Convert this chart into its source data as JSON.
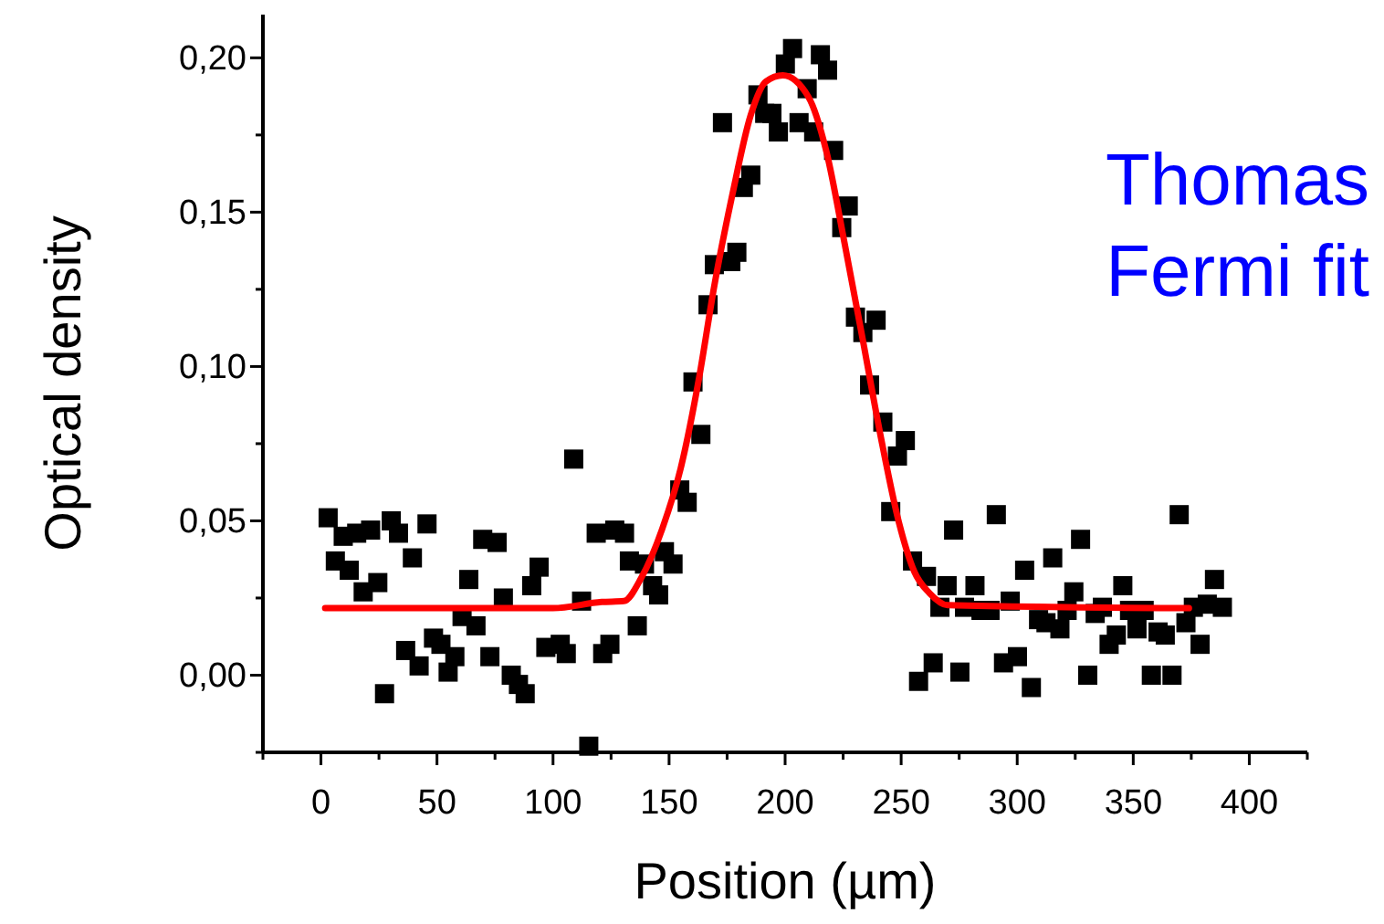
{
  "chart_data": {
    "type": "scatter",
    "xlabel": "Position (µm)",
    "ylabel": "Optical density",
    "annotations": [
      "Thomas Fermi fit"
    ],
    "xlim": [
      -25,
      425
    ],
    "xticks": [
      {
        "value": -25,
        "label": null
      },
      0,
      {
        "value": 25,
        "label": null
      },
      50,
      {
        "value": 75,
        "label": null
      },
      100,
      {
        "value": 125,
        "label": null
      },
      150,
      {
        "value": 175,
        "label": null
      },
      200,
      {
        "value": 225,
        "label": null
      },
      250,
      {
        "value": 275,
        "label": null
      },
      300,
      {
        "value": 325,
        "label": null
      },
      350,
      {
        "value": 375,
        "label": null
      },
      400,
      {
        "value": 425,
        "label": null
      }
    ],
    "ylim": [
      -0.025,
      0.214
    ],
    "yticks": [
      {
        "value": -0.025,
        "label": null
      },
      {
        "value": 0,
        "label": "0,00"
      },
      {
        "value": 0.025,
        "label": null
      },
      {
        "value": 0.05,
        "label": "0,05"
      },
      {
        "value": 0.075,
        "label": null
      },
      {
        "value": 0.1,
        "label": "0,10"
      },
      {
        "value": 0.125,
        "label": null
      },
      {
        "value": 0.15,
        "label": "0,15"
      },
      {
        "value": 0.175,
        "label": null
      },
      {
        "value": 0.2,
        "label": "0,20"
      }
    ],
    "grid": false,
    "series": [
      {
        "marker": "square",
        "color": "#000000",
        "x": [
          3.1,
          6.2,
          9.6,
          12.2,
          15.4,
          18.2,
          21.4,
          24.5,
          27.4,
          30.3,
          33.4,
          36.5,
          39.4,
          42.3,
          45.7,
          48.5,
          51.7,
          54.8,
          57.7,
          60.8,
          63.7,
          66.8,
          69.7,
          72.8,
          75.9,
          78.6,
          82,
          85.1,
          88,
          90.8,
          94,
          96.9,
          103.1,
          105.7,
          108.9,
          112.3,
          115.4,
          118.6,
          121.4,
          124.5,
          126.6,
          130.8,
          132.9,
          136.3,
          139.4,
          142.9,
          145.5,
          148,
          151.7,
          154.6,
          157.8,
          160.3,
          163.7,
          166.8,
          169.5,
          173,
          176.6,
          179.2,
          182,
          185.2,
          188.3,
          191.2,
          194.3,
          197.1,
          200.1,
          203.2,
          206,
          209.5,
          212.3,
          215.2,
          218.3,
          220.9,
          224.4,
          227.2,
          230.3,
          233.5,
          236.4,
          239.2,
          242.1,
          245.5,
          248.4,
          251.8,
          254.9,
          257.5,
          260.9,
          263.8,
          266.7,
          269.8,
          272.6,
          275.3,
          277.3,
          281.8,
          284.4,
          288.3,
          291,
          294.1,
          297,
          300.1,
          303.2,
          306.1,
          309.2,
          312.4,
          315.3,
          318.4,
          321.5,
          324.4,
          327.3,
          330.4,
          333.6,
          336.7,
          339.6,
          342.7,
          345.5,
          348.4,
          351.6,
          354.7,
          357.8,
          360.7,
          363.8,
          366.7,
          369.8,
          372.7,
          375.9,
          378.8,
          381.9,
          385,
          388.4
        ],
        "values": [
          0.051,
          0.037,
          0.045,
          0.034,
          0.046,
          0.027,
          0.047,
          0.03,
          -0.006,
          0.05,
          0.046,
          0.008,
          0.038,
          0.003,
          0.049,
          0.012,
          0.01,
          0.001,
          0.006,
          0.019,
          0.031,
          0.016,
          0.044,
          0.006,
          0.043,
          0.025,
          0.0,
          -0.003,
          -0.006,
          0.029,
          0.035,
          0.009,
          0.01,
          0.007,
          0.07,
          0.024,
          -0.023,
          0.046,
          0.007,
          0.01,
          0.047,
          0.046,
          0.037,
          0.016,
          0.036,
          0.029,
          0.026,
          0.04,
          0.036,
          0.06,
          0.056,
          0.095,
          0.078,
          0.12,
          0.133,
          0.179,
          0.134,
          0.137,
          0.158,
          0.162,
          0.188,
          0.182,
          0.182,
          0.176,
          0.198,
          0.203,
          0.179,
          0.19,
          0.176,
          0.201,
          0.196,
          0.17,
          0.145,
          0.152,
          0.116,
          0.111,
          0.094,
          0.115,
          0.082,
          0.053,
          0.071,
          0.076,
          0.037,
          -0.002,
          0.032,
          0.004,
          0.022,
          0.029,
          0.047,
          0.001,
          0.022,
          0.029,
          0.021,
          0.021,
          0.052,
          0.004,
          0.024,
          0.006,
          0.034,
          -0.004,
          0.018,
          0.017,
          0.038,
          0.015,
          0.021,
          0.027,
          0.044,
          0.0,
          0.02,
          0.022,
          0.01,
          0.013,
          0.029,
          0.021,
          0.015,
          0.021,
          0.0,
          0.014,
          0.013,
          0.0,
          0.052,
          0.017,
          0.022,
          0.01,
          0.023,
          0.031,
          0.022
        ]
      },
      {
        "type": "line",
        "color": "#ff0000",
        "line_style": "solid",
        "marker": "none",
        "x": [
          1.8,
          100,
          121,
          130.5,
          138,
          147,
          155,
          163,
          169.5,
          177.3,
          185.2,
          191.7,
          199,
          210,
          217.8,
          225.6,
          233.5,
          241.3,
          249.1,
          255.7,
          262.2,
          270,
          374
        ],
        "values": [
          0.0217,
          0.0217,
          0.0237,
          0.024,
          0.0315,
          0.0473,
          0.067,
          0.0966,
          0.1262,
          0.1558,
          0.1815,
          0.1923,
          0.1943,
          0.1874,
          0.1696,
          0.14,
          0.1085,
          0.0769,
          0.0493,
          0.0335,
          0.0266,
          0.0227,
          0.0217
        ]
      }
    ]
  }
}
